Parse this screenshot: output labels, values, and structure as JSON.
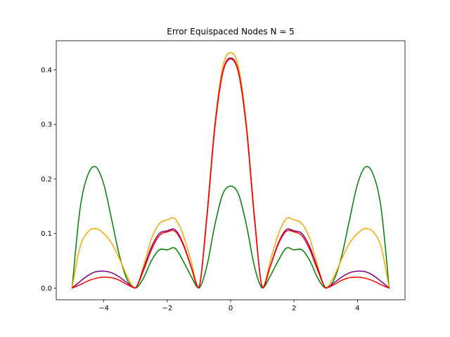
{
  "chart_data": {
    "type": "line",
    "title": "Error Equispaced Nodes N = 5",
    "xlabel": "",
    "ylabel": "",
    "xlim": [
      -5.5,
      5.5
    ],
    "ylim": [
      -0.0215,
      0.4535
    ],
    "xticks": [
      -4,
      -2,
      0,
      2,
      4
    ],
    "xtick_labels": [
      "−4",
      "−2",
      "0",
      "2",
      "4"
    ],
    "yticks": [
      0.0,
      0.1,
      0.2,
      0.3,
      0.4
    ],
    "ytick_labels": [
      "0.0",
      "0.1",
      "0.2",
      "0.3",
      "0.4"
    ],
    "grid": false,
    "legend": "none",
    "series": [
      {
        "color": "#008000",
        "x": [
          -5,
          -4.75,
          -4.5,
          -4.25,
          -4,
          -3.75,
          -3.5,
          -3.25,
          -3,
          -2.75,
          -2.5,
          -2.25,
          -2,
          -1.75,
          -1.5,
          -1.25,
          -1,
          -0.75,
          -0.5,
          -0.25,
          0,
          0.25,
          0.5,
          0.75,
          1,
          1.25,
          1.5,
          1.75,
          2,
          2.25,
          2.5,
          2.75,
          3,
          3.25,
          3.5,
          3.75,
          4,
          4.25,
          4.5,
          4.75,
          5
        ],
        "y": [
          0.0,
          0.145,
          0.208,
          0.222,
          0.19,
          0.125,
          0.058,
          0.014,
          0.0,
          0.018,
          0.05,
          0.07,
          0.07,
          0.073,
          0.05,
          0.022,
          0.0,
          0.04,
          0.115,
          0.172,
          0.187,
          0.172,
          0.115,
          0.04,
          0.0,
          0.022,
          0.05,
          0.073,
          0.07,
          0.07,
          0.05,
          0.018,
          0.0,
          0.014,
          0.058,
          0.125,
          0.19,
          0.222,
          0.208,
          0.145,
          0.0
        ]
      },
      {
        "color": "#ffa500",
        "x": [
          -5,
          -4.75,
          -4.5,
          -4.25,
          -4,
          -3.75,
          -3.5,
          -3.25,
          -3,
          -2.75,
          -2.5,
          -2.25,
          -2,
          -1.75,
          -1.5,
          -1.25,
          -1,
          -0.75,
          -0.5,
          -0.25,
          0,
          0.25,
          0.5,
          0.75,
          1,
          1.25,
          1.5,
          1.75,
          2,
          2.25,
          2.5,
          2.75,
          3,
          3.25,
          3.5,
          3.75,
          4,
          4.25,
          4.5,
          4.75,
          5
        ],
        "y": [
          0.0,
          0.075,
          0.103,
          0.109,
          0.1,
          0.082,
          0.053,
          0.02,
          0.0,
          0.04,
          0.09,
          0.118,
          0.125,
          0.127,
          0.098,
          0.05,
          0.0,
          0.135,
          0.3,
          0.405,
          0.432,
          0.405,
          0.3,
          0.135,
          0.0,
          0.05,
          0.098,
          0.127,
          0.125,
          0.118,
          0.09,
          0.04,
          0.0,
          0.02,
          0.053,
          0.082,
          0.1,
          0.109,
          0.103,
          0.075,
          0.0
        ]
      },
      {
        "color": "#800080",
        "x": [
          -5,
          -4.75,
          -4.5,
          -4.25,
          -4,
          -3.75,
          -3.5,
          -3.25,
          -3,
          -2.75,
          -2.5,
          -2.25,
          -2,
          -1.75,
          -1.5,
          -1.25,
          -1,
          -0.75,
          -0.5,
          -0.25,
          0,
          0.25,
          0.5,
          0.75,
          1,
          1.25,
          1.5,
          1.75,
          2,
          2.25,
          2.5,
          2.75,
          3,
          3.25,
          3.5,
          3.75,
          4,
          4.25,
          4.5,
          4.75,
          5
        ],
        "y": [
          0.0,
          0.012,
          0.023,
          0.03,
          0.031,
          0.028,
          0.02,
          0.009,
          0.0,
          0.035,
          0.075,
          0.1,
          0.105,
          0.107,
          0.082,
          0.04,
          0.0,
          0.13,
          0.294,
          0.396,
          0.422,
          0.396,
          0.294,
          0.13,
          0.0,
          0.04,
          0.082,
          0.107,
          0.105,
          0.1,
          0.075,
          0.035,
          0.0,
          0.009,
          0.02,
          0.028,
          0.031,
          0.03,
          0.023,
          0.012,
          0.0
        ]
      },
      {
        "color": "#ff0000",
        "x": [
          -5,
          -4.75,
          -4.5,
          -4.25,
          -4,
          -3.75,
          -3.5,
          -3.25,
          -3,
          -2.75,
          -2.5,
          -2.25,
          -2,
          -1.75,
          -1.5,
          -1.25,
          -1,
          -0.75,
          -0.5,
          -0.25,
          0,
          0.25,
          0.5,
          0.75,
          1,
          1.25,
          1.5,
          1.75,
          2,
          2.25,
          2.5,
          2.75,
          3,
          3.25,
          3.5,
          3.75,
          4,
          4.25,
          4.5,
          4.75,
          5
        ],
        "y": [
          0.0,
          0.006,
          0.013,
          0.018,
          0.02,
          0.019,
          0.014,
          0.006,
          0.0,
          0.032,
          0.07,
          0.096,
          0.103,
          0.104,
          0.08,
          0.039,
          0.0,
          0.128,
          0.292,
          0.394,
          0.42,
          0.394,
          0.292,
          0.128,
          0.0,
          0.039,
          0.08,
          0.104,
          0.103,
          0.096,
          0.07,
          0.032,
          0.0,
          0.006,
          0.014,
          0.019,
          0.02,
          0.018,
          0.013,
          0.006,
          0.0
        ]
      }
    ]
  }
}
